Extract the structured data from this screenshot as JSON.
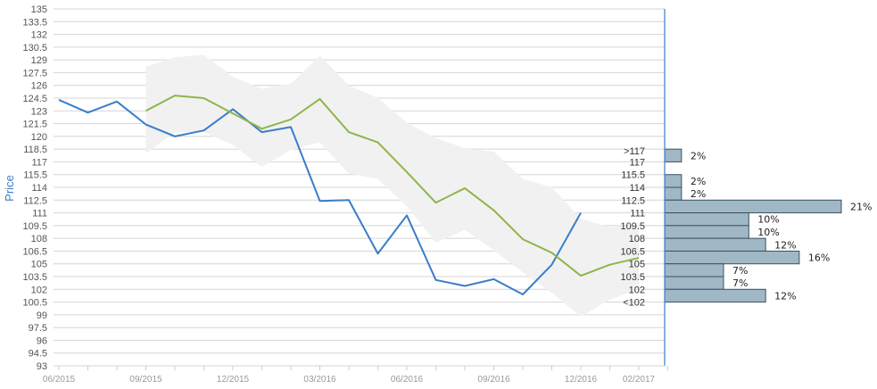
{
  "chart_data": {
    "type": "line",
    "ylabel": "Price",
    "xlabel": "",
    "ylim": [
      93,
      135
    ],
    "yticks": [
      93,
      94.5,
      96,
      97.5,
      99,
      100.5,
      102,
      103.5,
      105,
      106.5,
      108,
      109.5,
      111,
      112.5,
      114,
      115.5,
      117,
      118.5,
      120,
      121.5,
      123,
      124.5,
      126,
      127.5,
      129,
      130.5,
      132,
      133.5,
      135
    ],
    "ytick_labels": [
      "93",
      "94.5",
      "96",
      "97.5",
      "99",
      "100.5",
      "102",
      "103.5",
      "105",
      "106.5",
      "108",
      "109.5",
      "111",
      "112.5",
      "114",
      "115.5",
      "117",
      "118.5",
      "120",
      "121.5",
      "123",
      "124.5",
      "126",
      "127.5",
      "129",
      "130.5",
      "132",
      "133.5",
      "135"
    ],
    "x_tick_labels": [
      "06/2015",
      "09/2015",
      "12/2015",
      "03/2016",
      "06/2016",
      "09/2016",
      "12/2016",
      "02/2017"
    ],
    "x_tick_dates": [
      "2015-06",
      "2015-09",
      "2015-12",
      "2016-03",
      "2016-06",
      "2016-09",
      "2016-12",
      "2017-02"
    ],
    "grid": true,
    "series": [
      {
        "name": "",
        "color": "#3a7dc9",
        "x": [
          "2015-06",
          "2015-07",
          "2015-08",
          "2015-09",
          "2015-10",
          "2015-11",
          "2015-12",
          "2016-01",
          "2016-02",
          "2016-03",
          "2016-04",
          "2016-05",
          "2016-06",
          "2016-07",
          "2016-08",
          "2016-09",
          "2016-10",
          "2016-11",
          "2016-12"
        ],
        "values": [
          124.3,
          122.8,
          124.1,
          121.4,
          120.0,
          120.7,
          123.2,
          120.5,
          121.1,
          112.4,
          112.5,
          106.2,
          110.7,
          103.1,
          102.4,
          103.2,
          101.4,
          104.9,
          111.0
        ]
      },
      {
        "name": "",
        "color": "#8db54c",
        "x": [
          "2015-09",
          "2015-10",
          "2015-11",
          "2015-12",
          "2016-01",
          "2016-02",
          "2016-03",
          "2016-04",
          "2016-05",
          "2016-06",
          "2016-07",
          "2016-08",
          "2016-09",
          "2016-10",
          "2016-11",
          "2016-12",
          "2017-01",
          "2017-02"
        ],
        "values": [
          123.0,
          124.8,
          124.5,
          122.7,
          120.9,
          122.0,
          124.4,
          120.5,
          119.3,
          115.8,
          112.2,
          113.9,
          111.3,
          107.9,
          106.3,
          103.6,
          104.9,
          105.7
        ]
      }
    ],
    "band": {
      "color": "#f1f1f1",
      "x": [
        "2015-09",
        "2015-10",
        "2015-11",
        "2015-12",
        "2016-01",
        "2016-02",
        "2016-03",
        "2016-04",
        "2016-05",
        "2016-06",
        "2016-07",
        "2016-08",
        "2016-09",
        "2016-10",
        "2016-11",
        "2016-12",
        "2017-01",
        "2017-02"
      ],
      "upper": [
        128.2,
        129.3,
        129.6,
        127.0,
        125.6,
        126.2,
        129.5,
        126.0,
        124.5,
        121.6,
        119.8,
        118.6,
        118.2,
        115.0,
        114.0,
        110.3,
        109.3,
        109.6
      ],
      "lower": [
        118.0,
        120.5,
        120.5,
        119.0,
        116.4,
        118.4,
        119.3,
        115.6,
        115.0,
        111.8,
        107.5,
        109.0,
        106.6,
        104.0,
        101.6,
        98.8,
        100.8,
        102.0
      ]
    },
    "distribution": {
      "color": "#a0b8c6",
      "bins": [
        {
          "label": ">117",
          "pct": 2,
          "pct_label": "2%",
          "from": 117,
          "to": 118.5
        },
        {
          "label": "117",
          "pct": 0,
          "pct_label": "",
          "from": 115.5,
          "to": 117
        },
        {
          "label": "115.5",
          "pct": 2,
          "pct_label": "2%",
          "from": 114,
          "to": 115.5
        },
        {
          "label": "114",
          "pct": 2,
          "pct_label": "2%",
          "from": 112.5,
          "to": 114
        },
        {
          "label": "112.5",
          "pct": 21,
          "pct_label": "21%",
          "from": 111,
          "to": 112.5
        },
        {
          "label": "111",
          "pct": 10,
          "pct_label": "10%",
          "from": 109.5,
          "to": 111
        },
        {
          "label": "109.5",
          "pct": 10,
          "pct_label": "10%",
          "from": 108,
          "to": 109.5
        },
        {
          "label": "108",
          "pct": 12,
          "pct_label": "12%",
          "from": 106.5,
          "to": 108
        },
        {
          "label": "106.5",
          "pct": 16,
          "pct_label": "16%",
          "from": 105,
          "to": 106.5
        },
        {
          "label": "105",
          "pct": 7,
          "pct_label": "7%",
          "from": 103.5,
          "to": 105
        },
        {
          "label": "103.5",
          "pct": 7,
          "pct_label": "7%",
          "from": 102,
          "to": 103.5
        },
        {
          "label": "102",
          "pct": 12,
          "pct_label": "12%",
          "from": 100.5,
          "to": 102
        },
        {
          "label": "<102",
          "pct": 0,
          "pct_label": "",
          "from": 99,
          "to": 100.5
        }
      ]
    }
  }
}
